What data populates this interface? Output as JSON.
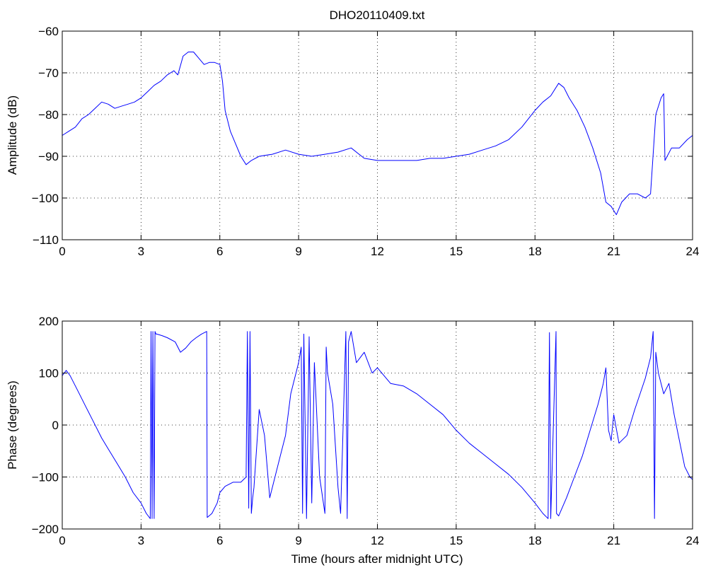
{
  "title": "DHO20110409.txt",
  "chart_data": [
    {
      "type": "line",
      "ylabel": "Amplitude (dB)",
      "xlabel": "",
      "xlim": [
        0,
        24
      ],
      "ylim": [
        -110,
        -60
      ],
      "xticks": [
        0,
        3,
        6,
        9,
        12,
        15,
        18,
        21,
        24
      ],
      "yticks": [
        -60,
        -70,
        -80,
        -90,
        -100,
        -110
      ],
      "xtick_labels": [
        "0",
        "3",
        "6",
        "9",
        "12",
        "15",
        "18",
        "21",
        "24"
      ],
      "ytick_labels": [
        "−60",
        "−70",
        "−80",
        "−90",
        "−100",
        "−110"
      ],
      "grid": true,
      "color": "#0000ff",
      "series": [
        {
          "x": [
            0,
            0.25,
            0.5,
            0.75,
            1.0,
            1.25,
            1.5,
            1.75,
            2.0,
            2.25,
            2.5,
            2.75,
            3.0,
            3.25,
            3.5,
            3.75,
            4.0,
            4.25,
            4.4,
            4.6,
            4.8,
            5.0,
            5.2,
            5.4,
            5.6,
            5.8,
            6.0,
            6.1,
            6.2,
            6.4,
            6.6,
            6.8,
            7.0,
            7.2,
            7.5,
            8.0,
            8.5,
            9.0,
            9.5,
            10.0,
            10.5,
            11.0,
            11.5,
            12.0,
            12.5,
            13.0,
            13.5,
            14.0,
            14.5,
            15.0,
            15.5,
            16.0,
            16.5,
            17.0,
            17.5,
            18.0,
            18.3,
            18.6,
            18.9,
            19.1,
            19.3,
            19.6,
            19.9,
            20.2,
            20.5,
            20.7,
            20.9,
            21.1,
            21.3,
            21.6,
            21.9,
            22.2,
            22.4,
            22.6,
            22.8,
            22.9,
            22.95,
            23.2,
            23.5,
            23.8,
            24.0
          ],
          "y": [
            -85,
            -84,
            -83,
            -81,
            -80,
            -78.5,
            -77,
            -77.5,
            -78.5,
            -78,
            -77.5,
            -77,
            -76,
            -74.5,
            -73,
            -72,
            -70.5,
            -69.5,
            -70.5,
            -66,
            -65,
            -65,
            -66.5,
            -68,
            -67.5,
            -67.5,
            -68,
            -72,
            -79,
            -84,
            -87,
            -90,
            -92,
            -91,
            -90,
            -89.5,
            -88.5,
            -89.5,
            -90,
            -89.5,
            -89,
            -88,
            -90.5,
            -91,
            -91,
            -91,
            -91,
            -90.5,
            -90.5,
            -90,
            -89.5,
            -88.5,
            -87.5,
            -86,
            -83,
            -79,
            -77,
            -75.5,
            -72.5,
            -73.5,
            -76,
            -79,
            -83,
            -88,
            -94,
            -101,
            -102,
            -104,
            -101,
            -99,
            -99,
            -100,
            -99,
            -80,
            -76,
            -75,
            -91,
            -88,
            -88,
            -86,
            -85
          ]
        }
      ]
    },
    {
      "type": "line",
      "ylabel": "Phase (degrees)",
      "xlabel": "Time (hours after midnight UTC)",
      "xlim": [
        0,
        24
      ],
      "ylim": [
        -200,
        200
      ],
      "xticks": [
        0,
        3,
        6,
        9,
        12,
        15,
        18,
        21,
        24
      ],
      "yticks": [
        200,
        100,
        0,
        -100,
        -200
      ],
      "xtick_labels": [
        "0",
        "3",
        "6",
        "9",
        "12",
        "15",
        "18",
        "21",
        "24"
      ],
      "ytick_labels": [
        "200",
        "100",
        "0",
        "−100",
        "−200"
      ],
      "grid": true,
      "color": "#0000ff",
      "series": [
        {
          "x": [
            0,
            0.15,
            0.3,
            0.6,
            0.9,
            1.2,
            1.5,
            1.8,
            2.1,
            2.4,
            2.7,
            3.0,
            3.2,
            3.35,
            3.38,
            3.42,
            3.45,
            3.5,
            3.53,
            3.57,
            3.6,
            3.8,
            4.0,
            4.3,
            4.5,
            4.7,
            4.9,
            5.1,
            5.3,
            5.5,
            5.52,
            5.7,
            5.9,
            6.0,
            6.2,
            6.5,
            6.8,
            7.0,
            7.05,
            7.1,
            7.15,
            7.2,
            7.25,
            7.3,
            7.5,
            7.7,
            7.9,
            8.1,
            8.3,
            8.5,
            8.7,
            8.9,
            9.0,
            9.1,
            9.15,
            9.2,
            9.3,
            9.4,
            9.5,
            9.6,
            9.8,
            10.0,
            10.05,
            10.1,
            10.3,
            10.5,
            10.6,
            10.8,
            10.85,
            10.9,
            11.0,
            11.2,
            11.5,
            11.8,
            12.0,
            12.5,
            13.0,
            13.5,
            14.0,
            14.5,
            15.0,
            15.5,
            16.0,
            16.5,
            17.0,
            17.5,
            18.0,
            18.3,
            18.5,
            18.55,
            18.6,
            18.8,
            18.82,
            18.9,
            19.2,
            19.5,
            19.8,
            20.1,
            20.4,
            20.6,
            20.7,
            20.8,
            20.9,
            21.0,
            21.2,
            21.5,
            21.8,
            22.0,
            22.2,
            22.4,
            22.5,
            22.55,
            22.6,
            22.7,
            22.9,
            23.1,
            23.3,
            23.5,
            23.7,
            23.9,
            24.0
          ],
          "y": [
            95,
            105,
            95,
            65,
            35,
            5,
            -25,
            -50,
            -75,
            -100,
            -130,
            -150,
            -170,
            -180,
            180,
            -180,
            180,
            -180,
            180,
            175,
            175,
            172,
            168,
            160,
            140,
            148,
            160,
            168,
            175,
            180,
            -178,
            -170,
            -150,
            -130,
            -118,
            -110,
            -110,
            -100,
            180,
            -160,
            180,
            -170,
            -140,
            -120,
            30,
            -20,
            -140,
            -100,
            -60,
            -20,
            60,
            100,
            120,
            150,
            -170,
            175,
            -180,
            170,
            -150,
            120,
            -100,
            -170,
            150,
            100,
            40,
            -120,
            -170,
            180,
            -180,
            160,
            180,
            120,
            140,
            100,
            110,
            80,
            75,
            60,
            40,
            20,
            -10,
            -35,
            -55,
            -75,
            -95,
            -120,
            -150,
            -170,
            -180,
            178,
            -180,
            180,
            -170,
            -175,
            -140,
            -100,
            -60,
            -10,
            40,
            80,
            110,
            -10,
            -30,
            20,
            -35,
            -20,
            30,
            60,
            90,
            130,
            180,
            -180,
            140,
            100,
            60,
            80,
            20,
            -30,
            -80,
            -100,
            -105
          ]
        }
      ]
    }
  ]
}
